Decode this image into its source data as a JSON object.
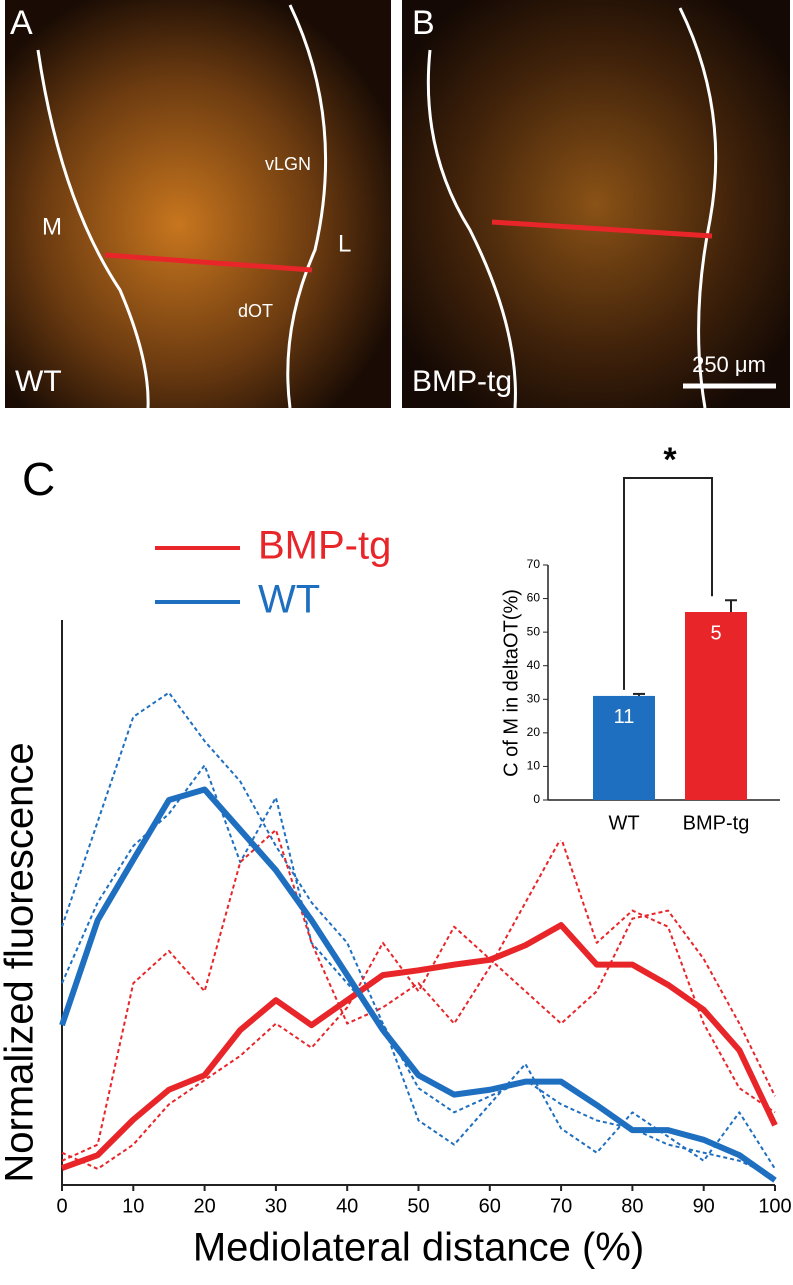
{
  "panels": [
    {
      "letter": "A",
      "genotype": "WT",
      "labels": [
        "M",
        "L",
        "vLGN",
        "dOT"
      ]
    },
    {
      "letter": "B",
      "genotype": "BMP-tg",
      "scale_bar": "250 μm"
    }
  ],
  "chart_data": [
    {
      "type": "line",
      "panel": "C",
      "xlabel": "Mediolateral distance (%)",
      "ylabel": "Normalized fluorescence",
      "x": [
        0,
        5,
        10,
        15,
        20,
        25,
        30,
        35,
        40,
        45,
        50,
        55,
        60,
        65,
        70,
        75,
        80,
        85,
        90,
        95,
        100
      ],
      "xlim": [
        0,
        100
      ],
      "xticks": [
        0,
        10,
        20,
        30,
        40,
        50,
        60,
        70,
        80,
        90,
        100
      ],
      "ylim": [
        0,
        7
      ],
      "series": [
        {
          "color": "#1f6fc0",
          "style": "dashed",
          "values": [
            3.2,
            4.5,
            5.8,
            6.1,
            5.5,
            5.0,
            4.2,
            3.5,
            3.0,
            2.0,
            1.2,
            0.9,
            1.1,
            1.3,
            1.0,
            0.8,
            0.7,
            0.5,
            0.4,
            0.3,
            0.1
          ]
        },
        {
          "color": "#1f6fc0",
          "style": "dashed",
          "values": [
            2.5,
            3.5,
            4.2,
            4.6,
            5.2,
            4.0,
            4.8,
            3.0,
            2.5,
            2.0,
            0.8,
            0.5,
            1.0,
            1.5,
            0.7,
            0.4,
            0.9,
            0.6,
            0.3,
            0.9,
            0.2
          ]
        },
        {
          "color": "#e8262a",
          "style": "dashed",
          "values": [
            0.3,
            0.5,
            2.5,
            2.9,
            2.4,
            4.0,
            4.4,
            3.0,
            2.0,
            2.2,
            2.5,
            2.0,
            2.7,
            3.5,
            4.3,
            3.0,
            3.4,
            3.2,
            2.0,
            1.2,
            0.9
          ]
        },
        {
          "color": "#e8262a",
          "style": "dashed",
          "values": [
            0.4,
            0.2,
            0.5,
            1.0,
            1.3,
            1.6,
            2.0,
            1.7,
            2.2,
            3.0,
            2.4,
            3.2,
            2.8,
            2.4,
            2.0,
            2.4,
            3.3,
            3.4,
            2.8,
            2.0,
            1.1
          ]
        },
        {
          "name": "BMP-tg",
          "color": "#e8262a",
          "style": "solid",
          "values": [
            0.21,
            0.37,
            0.81,
            1.18,
            1.36,
            1.92,
            2.29,
            1.98,
            2.29,
            2.6,
            2.66,
            2.73,
            2.79,
            2.97,
            3.22,
            2.73,
            2.73,
            2.48,
            2.17,
            1.67,
            0.74
          ]
        },
        {
          "name": "WT",
          "color": "#1f6fc0",
          "style": "solid",
          "values": [
            1.98,
            3.28,
            4.03,
            4.77,
            4.9,
            4.4,
            3.9,
            3.28,
            2.6,
            1.92,
            1.36,
            1.12,
            1.18,
            1.28,
            1.28,
            0.99,
            0.68,
            0.68,
            0.56,
            0.37,
            0.06
          ]
        }
      ]
    },
    {
      "type": "bar",
      "ylabel": "C of M in deltaOT(%)",
      "categories": [
        "WT",
        "BMP-tg"
      ],
      "values": [
        31,
        56
      ],
      "errors": [
        0.6,
        3.5
      ],
      "colors": [
        "#1f6fc0",
        "#e8262a"
      ],
      "n_labels": [
        "11",
        "5"
      ],
      "annotation": "*",
      "ylim": [
        0,
        70
      ],
      "yticks": [
        0,
        10,
        20,
        30,
        40,
        50,
        60,
        70
      ]
    }
  ]
}
